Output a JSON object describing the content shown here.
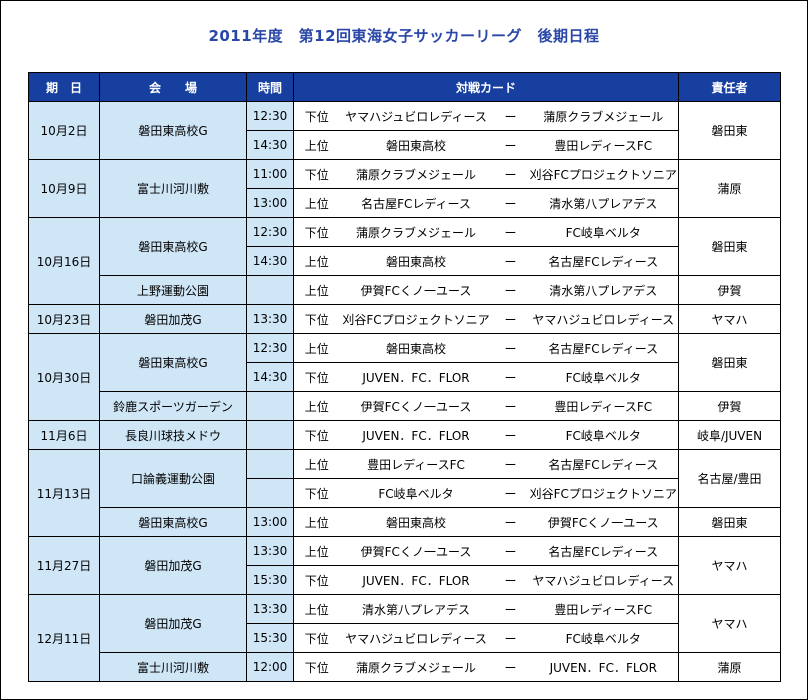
{
  "title": "2011年度　第12回東海女子サッカーリーグ　後期日程",
  "headers": {
    "date": "期　日",
    "venue": "会　　場",
    "time": "時間",
    "match": "対戦カード",
    "resp": "責任者"
  },
  "dash": "ー",
  "rows": [
    {
      "date": "10月2日",
      "venue": "磐田東高校G",
      "time": "12:30",
      "rank": "下位",
      "home": "ヤマハジュビロレディース",
      "away": "蒲原クラブメジェール",
      "resp": "磐田東"
    },
    {
      "time": "14:30",
      "rank": "上位",
      "home": "磐田東高校",
      "away": "豊田レディースFC"
    },
    {
      "date": "10月9日",
      "venue": "富士川河川敷",
      "time": "11:00",
      "rank": "下位",
      "home": "蒲原クラブメジェール",
      "away": "刈谷FCプロジェクトソニア",
      "resp": "蒲原"
    },
    {
      "time": "13:00",
      "rank": "上位",
      "home": "名古屋FCレディース",
      "away": "清水第八プレアデス"
    },
    {
      "date": "10月16日",
      "venue": "磐田東高校G",
      "time": "12:30",
      "rank": "下位",
      "home": "蒲原クラブメジェール",
      "away": "FC岐阜ベルタ",
      "resp": "磐田東"
    },
    {
      "time": "14:30",
      "rank": "上位",
      "home": "磐田東高校",
      "away": "名古屋FCレディース"
    },
    {
      "venue": "上野運動公園",
      "time": "",
      "rank": "上位",
      "home": "伊賀FCくノ一ユース",
      "away": "清水第八プレアデス",
      "resp": "伊賀"
    },
    {
      "date": "10月23日",
      "venue": "磐田加茂G",
      "time": "13:30",
      "rank": "下位",
      "home": "刈谷FCプロジェクトソニア",
      "away": "ヤマハジュビロレディース",
      "resp": "ヤマハ"
    },
    {
      "date": "10月30日",
      "venue": "磐田東高校G",
      "time": "12:30",
      "rank": "上位",
      "home": "磐田東高校",
      "away": "名古屋FCレディース",
      "resp": "磐田東"
    },
    {
      "time": "14:30",
      "rank": "下位",
      "home": "JUVEN．FC．FLOR",
      "away": "FC岐阜ベルタ"
    },
    {
      "venue": "鈴鹿スポーツガーデン",
      "time": "",
      "rank": "上位",
      "home": "伊賀FCくノ一ユース",
      "away": "豊田レディースFC",
      "resp": "伊賀"
    },
    {
      "date": "11月6日",
      "venue": "長良川球技メドウ",
      "time": "",
      "rank": "下位",
      "home": "JUVEN．FC．FLOR",
      "away": "FC岐阜ベルタ",
      "resp": "岐阜/JUVEN"
    },
    {
      "date": "11月13日",
      "venue": "口論義運動公園",
      "time": "",
      "rank": "上位",
      "home": "豊田レディースFC",
      "away": "名古屋FCレディース",
      "resp": "名古屋/豊田"
    },
    {
      "time": "",
      "rank": "下位",
      "home": "FC岐阜ベルタ",
      "away": "刈谷FCプロジェクトソニア"
    },
    {
      "venue": "磐田東高校G",
      "time": "13:00",
      "rank": "上位",
      "home": "磐田東高校",
      "away": "伊賀FCくノ一ユース",
      "resp": "磐田東"
    },
    {
      "date": "11月27日",
      "venue": "磐田加茂G",
      "time": "13:30",
      "rank": "上位",
      "home": "伊賀FCくノ一ユース",
      "away": "名古屋FCレディース",
      "resp": "ヤマハ"
    },
    {
      "time": "15:30",
      "rank": "下位",
      "home": "JUVEN．FC．FLOR",
      "away": "ヤマハジュビロレディース"
    },
    {
      "date": "12月11日",
      "venue": "磐田加茂G",
      "time": "13:30",
      "rank": "上位",
      "home": "清水第八プレアデス",
      "away": "豊田レディースFC",
      "resp": "ヤマハ"
    },
    {
      "time": "15:30",
      "rank": "下位",
      "home": "ヤマハジュビロレディース",
      "away": "FC岐阜ベルタ"
    },
    {
      "venue": "富士川河川敷",
      "time": "12:00",
      "rank": "下位",
      "home": "蒲原クラブメジェール",
      "away": "JUVEN．FC．FLOR",
      "resp": "蒲原"
    }
  ]
}
